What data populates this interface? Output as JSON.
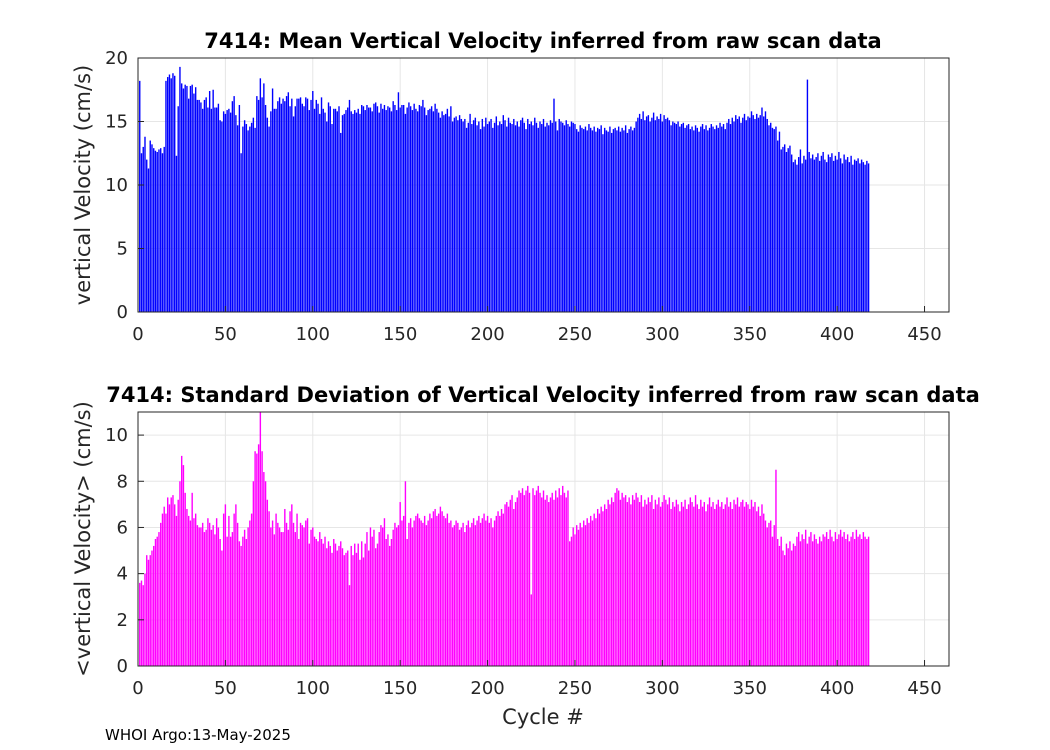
{
  "footer": {
    "text": "WHOI Argo:13-May-2025"
  },
  "chart_data": [
    {
      "type": "bar",
      "title": "7414: Mean Vertical Velocity inferred from raw scan data",
      "xlabel": "",
      "ylabel": "vertical Velocity (cm/s)",
      "xlim": [
        0,
        464
      ],
      "ylim": [
        0,
        20
      ],
      "xticks": [
        0,
        50,
        100,
        150,
        200,
        250,
        300,
        350,
        400,
        450
      ],
      "yticks": [
        0,
        5,
        10,
        15,
        20
      ],
      "grid": true,
      "color": "#0000ff",
      "series": [
        {
          "name": "mean vertical velocity",
          "x_start": 1,
          "x_step": 1,
          "values": [
            18.2,
            12.5,
            13.0,
            13.8,
            12.0,
            11.3,
            13.5,
            13.2,
            12.9,
            12.7,
            12.6,
            12.8,
            12.9,
            12.5,
            13.0,
            18.2,
            18.5,
            18.7,
            18.4,
            18.8,
            18.6,
            12.3,
            16.2,
            19.3,
            18.0,
            17.6,
            17.9,
            17.8,
            16.8,
            17.8,
            17.9,
            17.2,
            17.7,
            16.7,
            16.7,
            16.5,
            16.0,
            16.7,
            16.9,
            16.1,
            17.4,
            16.0,
            17.5,
            16.1,
            16.1,
            16.4,
            15.1,
            15.0,
            15.8,
            15.6,
            15.9,
            16.0,
            15.7,
            16.6,
            17.0,
            15.5,
            14.7,
            16.3,
            12.5,
            14.6,
            15.1,
            14.8,
            14.3,
            14.6,
            14.9,
            15.3,
            14.5,
            17.0,
            16.7,
            18.4,
            16.9,
            18.0,
            16.3,
            15.3,
            14.6,
            15.8,
            17.6,
            16.0,
            16.0,
            16.6,
            16.9,
            16.4,
            16.8,
            16.6,
            17.0,
            17.3,
            16.2,
            16.8,
            15.4,
            16.2,
            16.8,
            16.8,
            16.9,
            16.4,
            16.2,
            16.9,
            16.8,
            15.9,
            16.7,
            17.4,
            16.0,
            16.7,
            16.4,
            15.6,
            16.9,
            16.0,
            15.7,
            15.0,
            16.5,
            16.2,
            14.8,
            16.0,
            16.0,
            15.8,
            16.2,
            14.1,
            15.5,
            15.6,
            15.9,
            16.1,
            16.7,
            15.8,
            15.6,
            15.9,
            15.7,
            16.0,
            15.6,
            16.3,
            16.2,
            15.9,
            16.3,
            16.1,
            16.1,
            15.8,
            16.4,
            16.5,
            16.2,
            15.7,
            16.4,
            16.0,
            16.3,
            15.9,
            16.2,
            16.1,
            15.8,
            16.6,
            16.3,
            15.9,
            17.3,
            16.1,
            16.3,
            16.3,
            15.6,
            16.1,
            16.5,
            16.2,
            15.9,
            16.4,
            16.0,
            15.8,
            16.3,
            16.2,
            16.7,
            16.1,
            15.5,
            15.9,
            16.0,
            16.2,
            15.8,
            16.4,
            16.0,
            15.7,
            15.3,
            15.8,
            15.5,
            15.6,
            16.0,
            15.4,
            16.2,
            15.0,
            15.3,
            15.4,
            15.1,
            15.5,
            15.2,
            15.0,
            15.2,
            14.5,
            14.9,
            15.6,
            14.8,
            15.1,
            15.3,
            14.7,
            15.0,
            14.4,
            15.2,
            14.6,
            15.3,
            14.8,
            15.0,
            15.2,
            14.5,
            14.9,
            15.4,
            14.7,
            15.0,
            14.8,
            15.5,
            15.1,
            14.6,
            15.3,
            14.9,
            14.8,
            15.2,
            14.7,
            15.0,
            14.6,
            15.1,
            15.3,
            14.9,
            14.4,
            15.2,
            14.8,
            15.0,
            14.7,
            15.3,
            14.9,
            14.5,
            15.0,
            14.8,
            15.2,
            14.6,
            14.9,
            14.7,
            15.1,
            14.9,
            16.8,
            15.0,
            14.3,
            15.2,
            15.0,
            14.9,
            14.7,
            15.1,
            14.8,
            14.6,
            15.0,
            14.9,
            14.8,
            14.4,
            14.2,
            14.7,
            14.5,
            14.4,
            14.6,
            14.3,
            14.8,
            14.5,
            14.3,
            14.6,
            14.2,
            14.5,
            14.4,
            14.7,
            14.0,
            14.5,
            14.3,
            14.2,
            14.6,
            14.1,
            14.4,
            14.5,
            14.3,
            14.6,
            14.2,
            14.5,
            14.3,
            14.7,
            14.1,
            14.4,
            14.6,
            14.3,
            14.5,
            15.0,
            15.3,
            15.6,
            15.2,
            15.8,
            15.1,
            15.4,
            15.5,
            15.0,
            15.3,
            15.7,
            15.1,
            15.4,
            15.2,
            15.6,
            15.0,
            15.5,
            15.2,
            15.3,
            15.1,
            14.7,
            15.0,
            14.9,
            14.8,
            15.0,
            14.6,
            14.8,
            14.9,
            14.5,
            14.7,
            14.8,
            14.4,
            14.6,
            14.3,
            14.7,
            14.5,
            14.2,
            14.6,
            14.8,
            14.4,
            14.7,
            14.3,
            14.5,
            14.8,
            14.6,
            14.4,
            14.7,
            14.5,
            14.9,
            14.6,
            14.8,
            14.4,
            14.9,
            15.2,
            14.8,
            15.3,
            15.0,
            15.5,
            15.2,
            15.4,
            14.9,
            15.3,
            15.6,
            15.1,
            15.4,
            15.3,
            15.8,
            15.5,
            15.2,
            15.6,
            15.3,
            15.5,
            16.1,
            15.4,
            15.8,
            15.2,
            14.7,
            14.9,
            14.5,
            14.4,
            14.6,
            13.5,
            14.2,
            12.8,
            13.0,
            13.2,
            12.6,
            12.9,
            13.1,
            12.4,
            11.8,
            12.0,
            11.6,
            12.2,
            12.8,
            11.7,
            12.3,
            12.0,
            18.3,
            12.6,
            12.1,
            12.4,
            12.0,
            12.2,
            12.5,
            11.9,
            12.3,
            12.6,
            12.0,
            11.8,
            12.4,
            12.2,
            12.5,
            11.9,
            12.3,
            12.0,
            12.6,
            12.1,
            11.7,
            12.4,
            12.0,
            12.2,
            11.8,
            12.3,
            11.6,
            12.0,
            11.9,
            12.1,
            11.7,
            12.0,
            11.8,
            11.6,
            11.9,
            11.7
          ]
        }
      ]
    },
    {
      "type": "bar",
      "title": "7414: Standard Deviation of Vertical Velocity inferred from raw scan data",
      "xlabel": "Cycle #",
      "ylabel": "<vertical Velocity> (cm/s)",
      "xlim": [
        0,
        464
      ],
      "ylim": [
        0,
        11
      ],
      "xticks": [
        0,
        50,
        100,
        150,
        200,
        250,
        300,
        350,
        400,
        450
      ],
      "yticks": [
        0,
        2,
        4,
        6,
        8,
        10
      ],
      "grid": true,
      "color": "#ff00ff",
      "series": [
        {
          "name": "std of vertical velocity",
          "x_start": 1,
          "x_step": 1,
          "values": [
            3.6,
            3.7,
            3.5,
            4.0,
            4.8,
            4.6,
            4.8,
            5.0,
            5.2,
            5.5,
            5.6,
            5.8,
            6.2,
            6.6,
            6.9,
            6.6,
            7.3,
            7.0,
            7.3,
            7.4,
            7.0,
            6.5,
            7.2,
            8.0,
            9.1,
            8.7,
            7.5,
            6.8,
            6.5,
            6.3,
            7.5,
            6.4,
            6.6,
            6.1,
            6.0,
            6.0,
            6.2,
            5.8,
            5.9,
            6.4,
            6.2,
            5.9,
            6.1,
            5.7,
            6.4,
            6.0,
            5.5,
            5.0,
            6.6,
            7.0,
            5.6,
            6.5,
            5.6,
            5.8,
            6.6,
            7.0,
            6.2,
            5.4,
            5.2,
            5.6,
            5.9,
            5.5,
            6.0,
            6.3,
            6.6,
            8.0,
            9.3,
            9.2,
            9.6,
            11.0,
            9.3,
            8.4,
            8.0,
            7.2,
            6.7,
            6.0,
            6.3,
            5.7,
            6.6,
            6.2,
            6.0,
            5.8,
            5.8,
            6.8,
            6.2,
            5.9,
            6.7,
            7.0,
            6.2,
            5.8,
            6.6,
            5.5,
            6.2,
            6.1,
            6.0,
            6.3,
            6.4,
            5.3,
            5.9,
            6.0,
            5.6,
            5.5,
            5.4,
            5.8,
            5.5,
            5.3,
            5.6,
            5.1,
            5.4,
            5.2,
            4.9,
            5.5,
            5.3,
            5.0,
            5.2,
            5.4,
            5.1,
            4.8,
            4.9,
            5.0,
            3.5,
            5.2,
            4.8,
            5.3,
            4.9,
            5.3,
            4.6,
            5.4,
            4.7,
            5.3,
            5.8,
            5.0,
            6.0,
            5.6,
            5.9,
            5.1,
            5.3,
            5.8,
            6.1,
            6.0,
            6.4,
            5.5,
            5.7,
            5.2,
            5.5,
            5.9,
            6.2,
            6.0,
            6.1,
            7.1,
            6.3,
            6.5,
            8.0,
            5.5,
            6.2,
            6.4,
            6.0,
            6.3,
            6.5,
            6.6,
            6.4,
            6.3,
            6.2,
            6.5,
            6.1,
            6.3,
            6.6,
            6.4,
            6.7,
            6.8,
            6.5,
            6.6,
            6.9,
            6.7,
            6.5,
            6.4,
            6.6,
            6.2,
            6.3,
            6.0,
            6.1,
            6.3,
            6.2,
            5.9,
            6.0,
            6.2,
            5.8,
            6.1,
            6.3,
            6.0,
            6.2,
            6.4,
            6.1,
            6.3,
            6.5,
            6.2,
            6.4,
            6.6,
            6.3,
            6.5,
            6.2,
            6.4,
            6.0,
            6.3,
            6.5,
            6.7,
            6.5,
            6.8,
            6.6,
            7.0,
            7.1,
            6.9,
            7.2,
            7.4,
            6.8,
            7.1,
            7.3,
            7.6,
            7.5,
            7.7,
            7.4,
            7.6,
            7.8,
            7.5,
            3.1,
            7.7,
            7.4,
            7.6,
            7.8,
            7.5,
            7.3,
            7.6,
            7.2,
            7.4,
            7.1,
            7.3,
            7.5,
            7.2,
            7.6,
            7.3,
            7.7,
            7.4,
            7.8,
            7.5,
            7.3,
            7.6,
            5.4,
            5.6,
            6.0,
            5.7,
            6.1,
            5.9,
            6.2,
            6.0,
            6.3,
            6.1,
            6.4,
            6.2,
            6.5,
            6.3,
            6.6,
            6.4,
            6.8,
            6.6,
            6.9,
            6.7,
            7.0,
            6.8,
            7.2,
            7.0,
            7.3,
            7.1,
            7.5,
            7.7,
            7.6,
            7.2,
            7.5,
            7.3,
            7.4,
            7.1,
            7.3,
            7.0,
            7.4,
            7.2,
            7.5,
            7.3,
            7.1,
            7.4,
            6.9,
            7.2,
            7.0,
            7.3,
            7.1,
            7.4,
            6.8,
            7.2,
            7.0,
            7.3,
            6.9,
            7.1,
            7.4,
            7.2,
            7.0,
            7.3,
            6.8,
            7.1,
            6.9,
            7.2,
            7.0,
            6.7,
            7.1,
            6.9,
            7.2,
            6.8,
            7.0,
            7.3,
            7.1,
            6.9,
            7.4,
            7.0,
            6.8,
            7.2,
            6.9,
            7.1,
            6.7,
            7.0,
            7.3,
            6.9,
            7.1,
            6.8,
            7.0,
            7.2,
            6.9,
            7.1,
            6.8,
            7.0,
            7.3,
            6.9,
            7.1,
            6.8,
            7.2,
            7.0,
            7.3,
            6.9,
            7.1,
            7.2,
            6.9,
            7.1,
            7.0,
            6.8,
            7.2,
            6.9,
            7.1,
            6.7,
            6.9,
            6.5,
            7.0,
            6.6,
            6.3,
            6.0,
            6.2,
            6.3,
            5.6,
            6.1,
            8.5,
            5.5,
            5.2,
            5.6,
            5.0,
            4.8,
            5.3,
            5.1,
            5.4,
            5.0,
            5.3,
            5.2,
            5.6,
            5.8,
            5.4,
            5.7,
            5.5,
            5.9,
            5.3,
            5.6,
            5.8,
            5.4,
            5.7,
            5.5,
            5.3,
            5.6,
            5.4,
            5.7,
            5.6,
            5.8,
            5.5,
            5.9,
            5.6,
            5.4,
            5.8,
            5.5,
            5.7,
            5.9,
            5.6,
            5.8,
            5.5,
            5.7,
            5.4,
            5.6,
            5.8,
            5.5,
            5.9,
            5.6,
            5.7,
            5.5,
            5.8,
            5.6,
            5.5,
            5.6
          ]
        }
      ]
    }
  ]
}
